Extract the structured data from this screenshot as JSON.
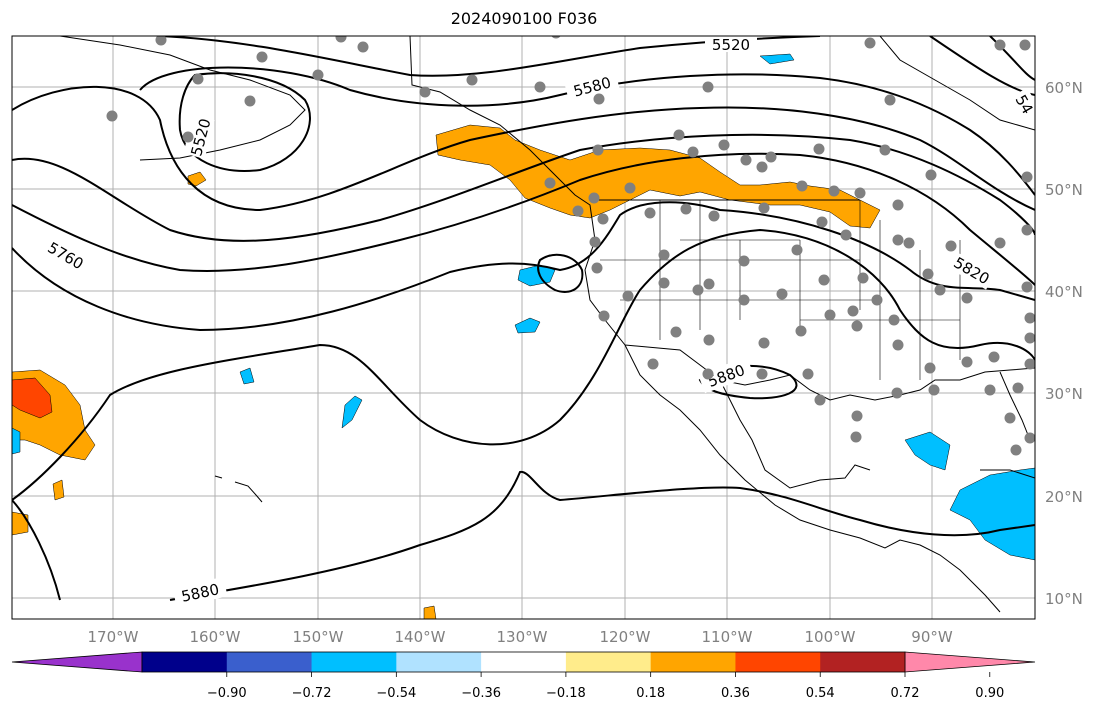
{
  "title": "2024090100 F036",
  "map": {
    "lon_ticks": [
      "170°W",
      "160°W",
      "150°W",
      "140°W",
      "130°W",
      "120°W",
      "110°W",
      "100°W",
      "90°W"
    ],
    "lat_ticks": [
      "60°N",
      "50°N",
      "40°N",
      "30°N",
      "20°N",
      "10°N"
    ],
    "contour_labels": [
      "5520",
      "5580",
      "5520",
      "5760",
      "5880",
      "5880",
      "5820",
      "54"
    ],
    "colors": {
      "contour": "#000000",
      "coast": "#000000",
      "grid": "#b0b0b0",
      "station_dot": "#808080",
      "pos_fill": "#ffa500",
      "neg_fill": "#00bfff",
      "strong_pos_fill": "#ff4500"
    }
  },
  "colorbar": {
    "tick_labels": [
      "−0.90",
      "−0.72",
      "−0.54",
      "−0.36",
      "−0.18",
      "0.18",
      "0.36",
      "0.54",
      "0.72",
      "0.90"
    ],
    "colors": [
      "#9932cc",
      "#00008b",
      "#3a5fcd",
      "#00bfff",
      "#b0e2ff",
      "#ffffff",
      "#ffec8b",
      "#ffa500",
      "#ff4500",
      "#b22222",
      "#ff88aa"
    ]
  }
}
